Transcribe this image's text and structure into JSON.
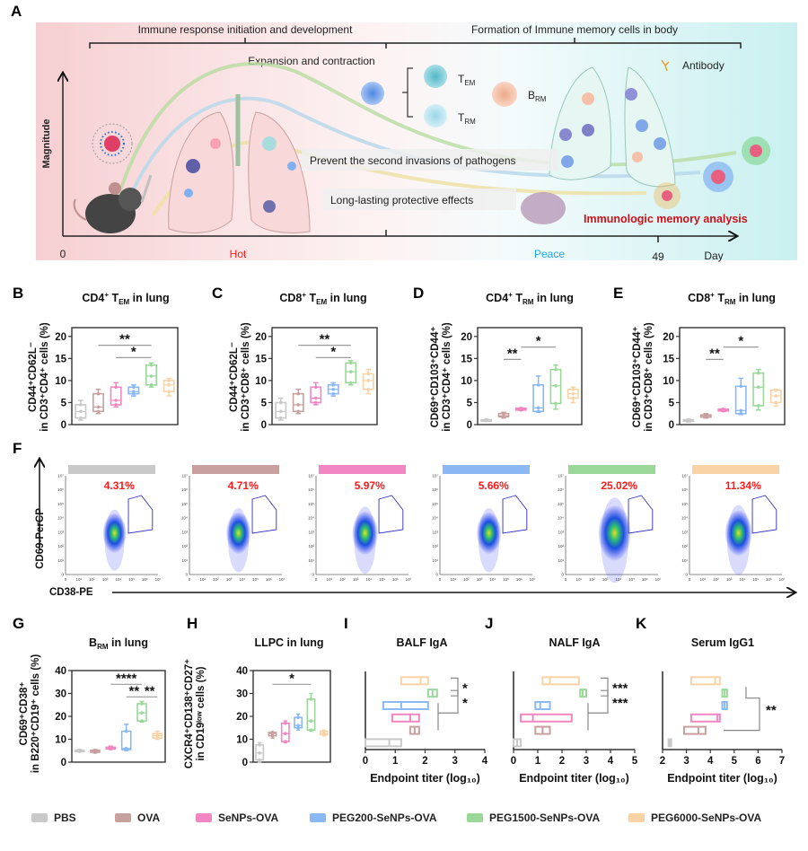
{
  "groups": [
    {
      "name": "PBS",
      "color": "#c9c9c9"
    },
    {
      "name": "OVA",
      "color": "#c8a09e"
    },
    {
      "name": "SeNPs-OVA",
      "color": "#f286c2"
    },
    {
      "name": "PEG200-SeNPs-OVA",
      "color": "#8ab8f4"
    },
    {
      "name": "PEG1500-SeNPs-OVA",
      "color": "#9ad89a"
    },
    {
      "name": "PEG6000-SeNPs-OVA",
      "color": "#f9d3a6"
    }
  ],
  "panel_letters": [
    "A",
    "B",
    "C",
    "D",
    "E",
    "F",
    "G",
    "H",
    "I",
    "J",
    "K"
  ],
  "panel_a": {
    "phase_left": "Immune response initiation and development",
    "phase_right": "Formation of Immune memory cells in body",
    "expansion": "Expansion and contraction",
    "y_axis": "Magnitude",
    "t_em": {
      "base": "T",
      "sub": "EM"
    },
    "t_rm": {
      "base": "T",
      "sub": "RM"
    },
    "b_rm": {
      "base": "B",
      "sub": "RM"
    },
    "antibody": "Antibody",
    "prevent": "Prevent the second invasions of pathogens",
    "long_lasting": "Long-lasting protective effects",
    "analysis": "Immunologic memory  analysis",
    "x_ticks": {
      "zero": "0",
      "hot": "Hot",
      "peace": "Peace",
      "day49": "49",
      "day": "Day"
    },
    "colors": {
      "hot": "#ff1a1a",
      "peace": "#1aa8e8",
      "analysis": "#d0101a"
    }
  },
  "chart_data": [
    {
      "id": "B",
      "type": "box",
      "title": [
        {
          "t": "CD4"
        },
        {
          "t": "+",
          "s": "sup"
        },
        {
          "t": " T"
        },
        {
          "t": "EM",
          "s": "sub"
        },
        {
          "t": " in lung"
        }
      ],
      "ylabel": [
        "CD44⁺CD62L⁻",
        "in CD3⁺CD4⁺ cells (%)"
      ],
      "ylim": [
        0,
        22
      ],
      "yticks": [
        0,
        5,
        10,
        15,
        20
      ],
      "values": [
        [
          1,
          1.5,
          3,
          4.5,
          5.5
        ],
        [
          2.5,
          3,
          4,
          7,
          8
        ],
        [
          4,
          4.5,
          5.5,
          8.5,
          9.5
        ],
        [
          6.5,
          7,
          7.5,
          8.5,
          9
        ],
        [
          8.5,
          9,
          11,
          13.5,
          14
        ],
        [
          6.5,
          7.5,
          9,
          10,
          10.5
        ]
      ],
      "significance": [
        {
          "from": 1,
          "to": 4,
          "y": 18,
          "label": "**"
        },
        {
          "from": 2,
          "to": 4,
          "y": 15.2,
          "label": "*"
        }
      ]
    },
    {
      "id": "C",
      "type": "box",
      "title": [
        {
          "t": "CD8"
        },
        {
          "t": "+",
          "s": "sup"
        },
        {
          "t": " T"
        },
        {
          "t": "EM",
          "s": "sub"
        },
        {
          "t": " in lung"
        }
      ],
      "ylabel": [
        "CD44⁺CD62L⁻",
        "in CD3⁺CD8⁺ cells (%)"
      ],
      "ylim": [
        0,
        22
      ],
      "yticks": [
        0,
        5,
        10,
        15,
        20
      ],
      "values": [
        [
          1,
          1.5,
          3,
          5,
          6
        ],
        [
          2.5,
          3,
          4.5,
          7,
          8
        ],
        [
          4.5,
          5,
          6,
          8.5,
          9.5
        ],
        [
          6.5,
          7,
          8,
          9,
          9.5
        ],
        [
          9,
          9.5,
          12,
          14,
          14.5
        ],
        [
          7,
          8,
          10,
          11.5,
          12.5
        ]
      ],
      "significance": [
        {
          "from": 1,
          "to": 4,
          "y": 18,
          "label": "**"
        },
        {
          "from": 2,
          "to": 4,
          "y": 15.2,
          "label": "*"
        }
      ]
    },
    {
      "id": "D",
      "type": "box",
      "title": [
        {
          "t": "CD4"
        },
        {
          "t": "+",
          "s": "sup"
        },
        {
          "t": " T"
        },
        {
          "t": "RM",
          "s": "sub"
        },
        {
          "t": " in lung"
        }
      ],
      "ylabel": [
        "CD69⁺CD103⁺CD44⁺",
        "in CD3⁺CD4⁺ cells (%)"
      ],
      "ylim": [
        0,
        22
      ],
      "yticks": [
        0,
        5,
        10,
        15,
        20
      ],
      "values": [
        [
          0.8,
          0.9,
          1,
          1.1,
          1.2
        ],
        [
          1.5,
          1.8,
          2,
          2.5,
          2.8
        ],
        [
          3.2,
          3.3,
          3.5,
          3.7,
          3.8
        ],
        [
          2.8,
          3,
          3.8,
          9,
          11
        ],
        [
          3.5,
          4.8,
          8.8,
          12.5,
          13.5
        ],
        [
          5,
          6,
          7,
          8,
          8.5
        ]
      ],
      "significance": [
        {
          "from": 1,
          "to": 2,
          "y": 14.8,
          "label": "**"
        },
        {
          "from": 2,
          "to": 4,
          "y": 17.6,
          "label": "*"
        }
      ]
    },
    {
      "id": "E",
      "type": "box",
      "title": [
        {
          "t": "CD8"
        },
        {
          "t": "+",
          "s": "sup"
        },
        {
          "t": " T"
        },
        {
          "t": "RM",
          "s": "sub"
        },
        {
          "t": " in lung"
        }
      ],
      "ylabel": [
        "CD69⁺CD103⁺CD44⁺",
        "in CD3⁺CD8⁺ cells (%)"
      ],
      "ylim": [
        0,
        22
      ],
      "yticks": [
        0,
        5,
        10,
        15,
        20
      ],
      "values": [
        [
          0.6,
          0.8,
          1,
          1.1,
          1.2
        ],
        [
          1.5,
          1.7,
          2,
          2.2,
          2.5
        ],
        [
          3,
          3.1,
          3.3,
          3.5,
          3.6
        ],
        [
          2.3,
          2.5,
          3.2,
          8.7,
          10.5
        ],
        [
          3.3,
          4.3,
          8.5,
          11.7,
          12.5
        ],
        [
          4.2,
          5,
          6.5,
          7.8,
          8
        ]
      ],
      "significance": [
        {
          "from": 1,
          "to": 2,
          "y": 14.8,
          "label": "**"
        },
        {
          "from": 2,
          "to": 4,
          "y": 17.6,
          "label": "*"
        }
      ]
    },
    {
      "id": "F",
      "type": "flow",
      "ylabel": "CD69-PerCP",
      "xlabel": "CD38-PE",
      "axis_ticks": [
        "0",
        "10¹",
        "10²",
        "10³",
        "10⁴",
        "10⁵",
        "10⁶",
        "10⁷"
      ],
      "percentages": [
        "4.31%",
        "4.71%",
        "5.97%",
        "5.66%",
        "25.02%",
        "11.34%"
      ]
    },
    {
      "id": "G",
      "type": "box",
      "title": [
        {
          "t": "B"
        },
        {
          "t": "RM",
          "s": "sub"
        },
        {
          "t": " in lung"
        }
      ],
      "ylabel": [
        "CD69⁺CD38⁺",
        "in B220⁺CD19⁺ cells (%)"
      ],
      "ylim": [
        0,
        40
      ],
      "yticks": [
        0,
        10,
        20,
        30,
        40
      ],
      "values": [
        [
          4.5,
          4.6,
          5,
          5.2,
          5.5
        ],
        [
          4,
          4.3,
          4.8,
          5.2,
          5.5
        ],
        [
          5.5,
          5.8,
          6,
          6.5,
          7
        ],
        [
          5,
          5.5,
          6,
          13.5,
          16.5
        ],
        [
          17.5,
          18,
          21.5,
          25.5,
          26.5
        ],
        [
          10,
          10.5,
          11.5,
          12.5,
          13.5
        ]
      ],
      "significance": [
        {
          "from": 2,
          "to": 4,
          "y": 34,
          "label": "****"
        },
        {
          "from": 3,
          "to": 4,
          "y": 28.5,
          "label": "**"
        },
        {
          "from": 4,
          "to": 5,
          "y": 28.5,
          "label": "**"
        }
      ]
    },
    {
      "id": "H",
      "type": "box",
      "title": [
        {
          "t": "LLPC in lung"
        }
      ],
      "ylabel": [
        "CXCR4⁺CD138⁺CD27⁺",
        "in CD19ˡᵒʷ cells (%)"
      ],
      "ylim": [
        0,
        40
      ],
      "yticks": [
        0,
        10,
        20,
        30,
        40
      ],
      "values": [
        [
          0,
          1,
          4,
          7.5,
          8.5
        ],
        [
          10.5,
          11.5,
          12.5,
          13,
          13
        ],
        [
          8.5,
          9,
          12.5,
          17,
          18
        ],
        [
          14,
          15,
          16,
          19.5,
          21
        ],
        [
          13.5,
          14,
          18,
          27.5,
          30
        ],
        [
          11.5,
          12,
          12.5,
          13.5,
          14
        ]
      ],
      "significance": [
        {
          "from": 1,
          "to": 4,
          "y": 34,
          "label": "*"
        }
      ]
    },
    {
      "id": "I",
      "type": "range",
      "title": "BALF  IgA",
      "xlabel": "Endpoint titer (log₁₀)",
      "xlim": [
        0,
        4
      ],
      "xticks": [
        0,
        1,
        2,
        3,
        4
      ],
      "values": [
        [
          0,
          0.8,
          1.2
        ],
        [
          1.5,
          1.65,
          1.8
        ],
        [
          0.9,
          1.5,
          1.8
        ],
        [
          0.6,
          1.2,
          2.1
        ],
        [
          2.1,
          2.25,
          2.4
        ],
        [
          1.2,
          1.85,
          2.1
        ]
      ],
      "significance": [
        {
          "label": "*"
        },
        {
          "label": "*"
        }
      ]
    },
    {
      "id": "J",
      "type": "range",
      "title": "NALF  IgA",
      "xlabel": "Endpoint titer (log₁₀)",
      "xlim": [
        0,
        5
      ],
      "xticks": [
        0,
        1,
        2,
        3,
        4,
        5
      ],
      "values": [
        [
          0,
          0.15,
          0.3
        ],
        [
          0.9,
          1.2,
          1.5
        ],
        [
          0.3,
          0.8,
          2.4
        ],
        [
          0.9,
          1.1,
          1.5
        ],
        [
          2.75,
          2.85,
          3.0
        ],
        [
          1.2,
          1.5,
          2.7
        ]
      ],
      "significance": [
        {
          "label": "***"
        },
        {
          "label": "***"
        }
      ]
    },
    {
      "id": "K",
      "type": "range",
      "title": "Serum  IgG1",
      "xlabel": "Endpoint titer (log₁₀)",
      "xlim": [
        2,
        7
      ],
      "xticks": [
        2,
        3,
        4,
        5,
        6,
        7
      ],
      "values": [
        [
          2.25,
          2.3,
          2.35
        ],
        [
          2.9,
          3.5,
          3.8
        ],
        [
          3.2,
          4.3,
          4.4
        ],
        [
          4.5,
          4.6,
          4.7
        ],
        [
          4.5,
          4.6,
          4.7
        ],
        [
          3.2,
          4.2,
          4.4
        ]
      ],
      "significance": [
        {
          "label": "**"
        }
      ]
    }
  ]
}
